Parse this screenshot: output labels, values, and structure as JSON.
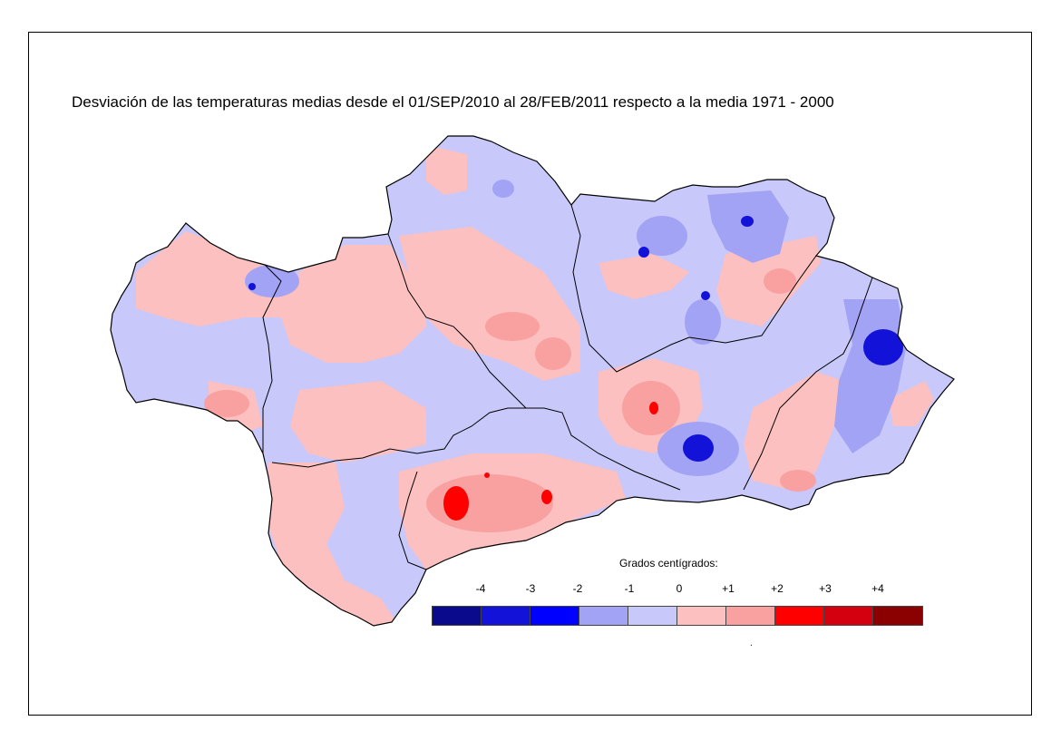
{
  "title": "Desviación de las temperaturas medias desde el 01/SEP/2010 al 28/FEB/2011 respecto a la media 1971 - 2000",
  "legend": {
    "title": "Grados centígrados:",
    "ticks": [
      "-4",
      "-3",
      "-2",
      "-1",
      "0",
      "+1",
      "+2",
      "+3",
      "+4"
    ],
    "colors": [
      "#0a0a8c",
      "#1212d8",
      "#0000ff",
      "#a3a3f5",
      "#c8c8fa",
      "#fcc0c0",
      "#f9a0a0",
      "#ff0000",
      "#d40010",
      "#8b0000"
    ]
  },
  "footnote": ".",
  "colors": {
    "neg1": "#c8c8fa",
    "neg2": "#a3a3f5",
    "neg3": "#1212d8",
    "pos1": "#fcc0c0",
    "pos2": "#f9a0a0",
    "pos3": "#ff0000",
    "border": "#000000"
  }
}
